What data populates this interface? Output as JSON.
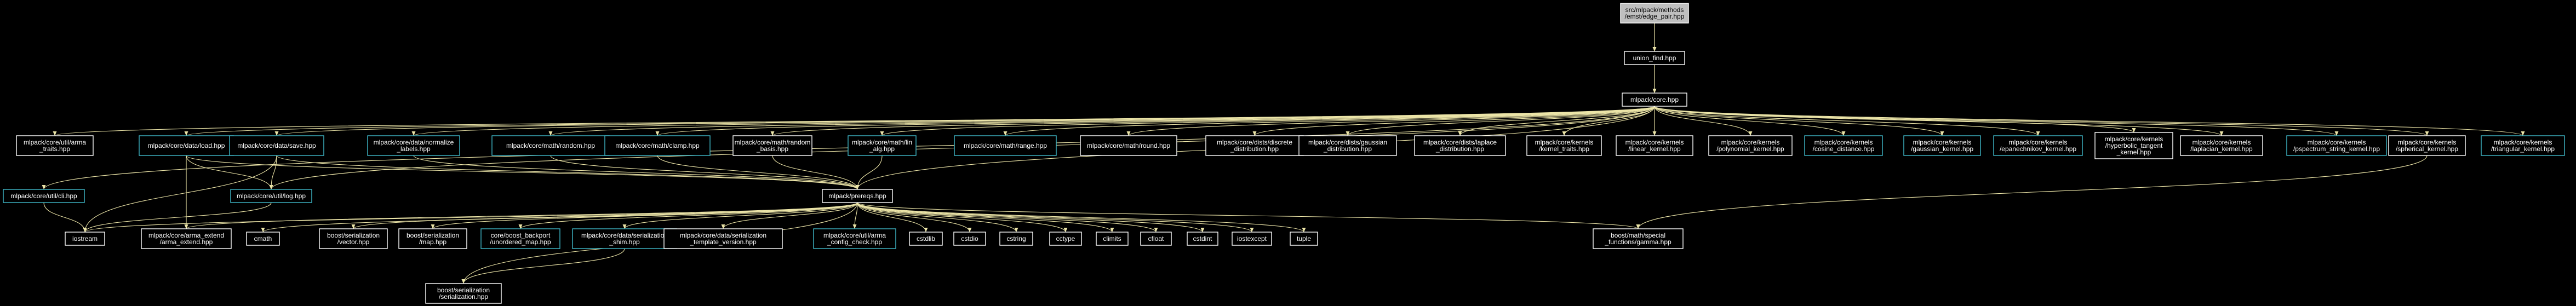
{
  "colors": {
    "background": "#000000",
    "edge": "#ece5a8",
    "node_border": "#ffffff",
    "linked_border": "#3fb8c8",
    "root_fill": "#bfbfbf"
  },
  "nodes": {
    "root": {
      "lines": [
        "src/mlpack/methods",
        "/emst/edge_pair.hpp"
      ],
      "style": "root"
    },
    "unsr": {
      "lines": [
        "union_find.hpp"
      ],
      "style": "white"
    },
    "core": {
      "lines": [
        "mlpack/core.hpp"
      ],
      "style": "white"
    },
    "arma": {
      "lines": [
        "mlpack/core/util/arma",
        "_traits.hpp"
      ],
      "style": "white"
    },
    "load": {
      "lines": [
        "mlpack/core/data/load.hpp"
      ],
      "style": "cyan"
    },
    "save": {
      "lines": [
        "mlpack/core/data/save.hpp"
      ],
      "style": "cyan"
    },
    "norm": {
      "lines": [
        "mlpack/core/data/normalize",
        "_labels.hpp"
      ],
      "style": "cyan"
    },
    "rand": {
      "lines": [
        "mlpack/core/math/random.hpp"
      ],
      "style": "cyan"
    },
    "clam": {
      "lines": [
        "mlpack/core/math/clamp.hpp"
      ],
      "style": "cyan"
    },
    "rbas": {
      "lines": [
        "mlpack/core/math/random",
        "_basis.hpp"
      ],
      "style": "white"
    },
    "lin": {
      "lines": [
        "mlpack/core/math/lin",
        "_alg.hpp"
      ],
      "style": "cyan"
    },
    "rang": {
      "lines": [
        "mlpack/core/math/range.hpp"
      ],
      "style": "cyan"
    },
    "roun": {
      "lines": [
        "mlpack/core/math/round.hpp"
      ],
      "style": "white"
    },
    "ddis": {
      "lines": [
        "mlpack/core/dists/discrete",
        "_distribution.hpp"
      ],
      "style": "white"
    },
    "gdis": {
      "lines": [
        "mlpack/core/dists/gaussian",
        "_distribution.hpp"
      ],
      "style": "white"
    },
    "ldis": {
      "lines": [
        "mlpack/core/dists/laplace",
        "_distribution.hpp"
      ],
      "style": "white"
    },
    "ktra": {
      "lines": [
        "mlpack/core/kernels",
        "/kernel_traits.hpp"
      ],
      "style": "white"
    },
    "klin": {
      "lines": [
        "mlpack/core/kernels",
        "/linear_kernel.hpp"
      ],
      "style": "white"
    },
    "kpol": {
      "lines": [
        "mlpack/core/kernels",
        "/polynomial_kernel.hpp"
      ],
      "style": "white"
    },
    "kcos": {
      "lines": [
        "mlpack/core/kernels",
        "/cosine_distance.hpp"
      ],
      "style": "cyan"
    },
    "kgau": {
      "lines": [
        "mlpack/core/kernels",
        "/gaussian_kernel.hpp"
      ],
      "style": "cyan"
    },
    "kepa": {
      "lines": [
        "mlpack/core/kernels",
        "/epanechnikov_kernel.hpp"
      ],
      "style": "cyan"
    },
    "khyp": {
      "lines": [
        "mlpack/core/kernels",
        "/hyperbolic_tangent",
        "_kernel.hpp"
      ],
      "style": "white"
    },
    "klap": {
      "lines": [
        "mlpack/core/kernels",
        "/laplacian_kernel.hpp"
      ],
      "style": "white"
    },
    "kpsp": {
      "lines": [
        "mlpack/core/kernels",
        "/pspectrum_string_kernel.hpp"
      ],
      "style": "cyan"
    },
    "ksph": {
      "lines": [
        "mlpack/core/kernels",
        "/spherical_kernel.hpp"
      ],
      "style": "white"
    },
    "ktri": {
      "lines": [
        "mlpack/core/kernels",
        "/triangular_kernel.hpp"
      ],
      "style": "cyan"
    },
    "cli": {
      "lines": [
        "mlpack/core/util/cli.hpp"
      ],
      "style": "cyan"
    },
    "log": {
      "lines": [
        "mlpack/core/util/log.hpp"
      ],
      "style": "cyan"
    },
    "prer": {
      "lines": [
        "mlpack/prereqs.hpp"
      ],
      "style": "white"
    },
    "iost": {
      "lines": [
        "iostream"
      ],
      "style": "white"
    },
    "aext": {
      "lines": [
        "mlpack/core/arma_extend",
        "/arma_extend.hpp"
      ],
      "style": "white"
    },
    "cmat": {
      "lines": [
        "cmath"
      ],
      "style": "white"
    },
    "bsv": {
      "lines": [
        "boost/serialization",
        "/vector.hpp"
      ],
      "style": "white"
    },
    "bsm": {
      "lines": [
        "boost/serialization",
        "/map.hpp"
      ],
      "style": "white"
    },
    "cbk": {
      "lines": [
        "core/boost_backport",
        "/unordered_map.hpp"
      ],
      "style": "cyan"
    },
    "sshi": {
      "lines": [
        "mlpack/core/data/serialization",
        "_shim.hpp"
      ],
      "style": "cyan"
    },
    "stv": {
      "lines": [
        "mlpack/core/data/serialization",
        "_template_version.hpp"
      ],
      "style": "white"
    },
    "acc": {
      "lines": [
        "mlpack/core/util/arma",
        "_config_check.hpp"
      ],
      "style": "cyan"
    },
    "cstd": {
      "lines": [
        "cstdlib"
      ],
      "style": "white"
    },
    "cstdi": {
      "lines": [
        "cstdio"
      ],
      "style": "white"
    },
    "cstr": {
      "lines": [
        "cstring"
      ],
      "style": "white"
    },
    "ctyp": {
      "lines": [
        "cctype"
      ],
      "style": "white"
    },
    "clim": {
      "lines": [
        "climits"
      ],
      "style": "white"
    },
    "cflo": {
      "lines": [
        "cfloat"
      ],
      "style": "white"
    },
    "cint": {
      "lines": [
        "cstdint"
      ],
      "style": "white"
    },
    "isec": {
      "lines": [
        "iostexcept"
      ],
      "style": "white"
    },
    "tupl": {
      "lines": [
        "tuple"
      ],
      "style": "white"
    },
    "bmsf": {
      "lines": [
        "boost/math/special",
        "_functions/gamma.hpp"
      ],
      "style": "white"
    },
    "bser": {
      "lines": [
        "boost/serialization",
        "/serialization.hpp"
      ],
      "style": "white"
    }
  },
  "edges": [
    [
      "root",
      "unsr"
    ],
    [
      "root",
      "core"
    ],
    [
      "unsr",
      "core"
    ],
    [
      "core",
      "arma"
    ],
    [
      "core",
      "load"
    ],
    [
      "core",
      "save"
    ],
    [
      "core",
      "norm"
    ],
    [
      "core",
      "rand"
    ],
    [
      "core",
      "clam"
    ],
    [
      "core",
      "rbas"
    ],
    [
      "core",
      "lin"
    ],
    [
      "core",
      "rang"
    ],
    [
      "core",
      "roun"
    ],
    [
      "core",
      "ddis"
    ],
    [
      "core",
      "gdis"
    ],
    [
      "core",
      "ldis"
    ],
    [
      "core",
      "ktra"
    ],
    [
      "core",
      "klin"
    ],
    [
      "core",
      "kpol"
    ],
    [
      "core",
      "kcos"
    ],
    [
      "core",
      "kgau"
    ],
    [
      "core",
      "kepa"
    ],
    [
      "core",
      "khyp"
    ],
    [
      "core",
      "klap"
    ],
    [
      "core",
      "kpsp"
    ],
    [
      "core",
      "ksph"
    ],
    [
      "core",
      "ktri"
    ],
    [
      "core",
      "cli"
    ],
    [
      "core",
      "log"
    ],
    [
      "core",
      "prer"
    ],
    [
      "load",
      "log"
    ],
    [
      "load",
      "aext"
    ],
    [
      "load",
      "prer"
    ],
    [
      "save",
      "log"
    ],
    [
      "save",
      "prer"
    ],
    [
      "save",
      "iost"
    ],
    [
      "norm",
      "prer"
    ],
    [
      "rand",
      "prer"
    ],
    [
      "clam",
      "prer"
    ],
    [
      "rbas",
      "prer"
    ],
    [
      "lin",
      "prer"
    ],
    [
      "cli",
      "iost"
    ],
    [
      "log",
      "iost"
    ],
    [
      "prer",
      "iost"
    ],
    [
      "prer",
      "aext"
    ],
    [
      "prer",
      "cmat"
    ],
    [
      "prer",
      "bsv"
    ],
    [
      "prer",
      "bsm"
    ],
    [
      "prer",
      "cbk"
    ],
    [
      "prer",
      "sshi"
    ],
    [
      "prer",
      "stv"
    ],
    [
      "prer",
      "acc"
    ],
    [
      "prer",
      "cstd"
    ],
    [
      "prer",
      "cstdi"
    ],
    [
      "prer",
      "cstr"
    ],
    [
      "prer",
      "ctyp"
    ],
    [
      "prer",
      "clim"
    ],
    [
      "prer",
      "cflo"
    ],
    [
      "prer",
      "cint"
    ],
    [
      "prer",
      "isec"
    ],
    [
      "prer",
      "tupl"
    ],
    [
      "prer",
      "bmsf"
    ],
    [
      "prer",
      "bser"
    ],
    [
      "sshi",
      "bser"
    ],
    [
      "ksph",
      "bmsf"
    ]
  ]
}
